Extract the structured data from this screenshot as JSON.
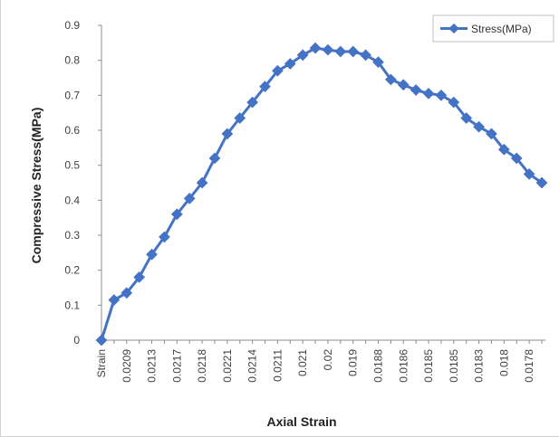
{
  "colors": {
    "series": "#4472C4",
    "axis": "#8c8c8c",
    "frame_border": "#d0d0d0"
  },
  "chart_data": {
    "type": "line",
    "xlabel": "Axial Strain",
    "ylabel": "Compressive Stress(MPa)",
    "ylim": [
      0,
      0.9
    ],
    "y_ticks": [
      "0",
      "0.1",
      "0.2",
      "0.3",
      "0.4",
      "0.5",
      "0.6",
      "0.7",
      "0.8",
      "0.9"
    ],
    "grid": false,
    "legend_position": "top-right",
    "markers": "diamond",
    "categories": [
      "Strain",
      "",
      "0.0209",
      "",
      "0.0213",
      "",
      "0.0217",
      "",
      "0.0218",
      "",
      "0.0221",
      "",
      "0.0214",
      "",
      "0.0211",
      "",
      "0.021",
      "",
      "0.02",
      "",
      "0.019",
      "",
      "0.0188",
      "",
      "0.0186",
      "",
      "0.0185",
      "",
      "0.0185",
      "",
      "0.0183",
      "",
      "0.018",
      "",
      "0.0178",
      ""
    ],
    "series": [
      {
        "name": "Stress(MPa)",
        "values": [
          0,
          0.115,
          0.135,
          0.18,
          0.245,
          0.295,
          0.36,
          0.405,
          0.45,
          0.52,
          0.59,
          0.635,
          0.68,
          0.725,
          0.77,
          0.79,
          0.815,
          0.835,
          0.83,
          0.825,
          0.825,
          0.815,
          0.795,
          0.745,
          0.73,
          0.715,
          0.705,
          0.7,
          0.68,
          0.635,
          0.61,
          0.59,
          0.545,
          0.52,
          0.475,
          0.45
        ]
      }
    ]
  }
}
